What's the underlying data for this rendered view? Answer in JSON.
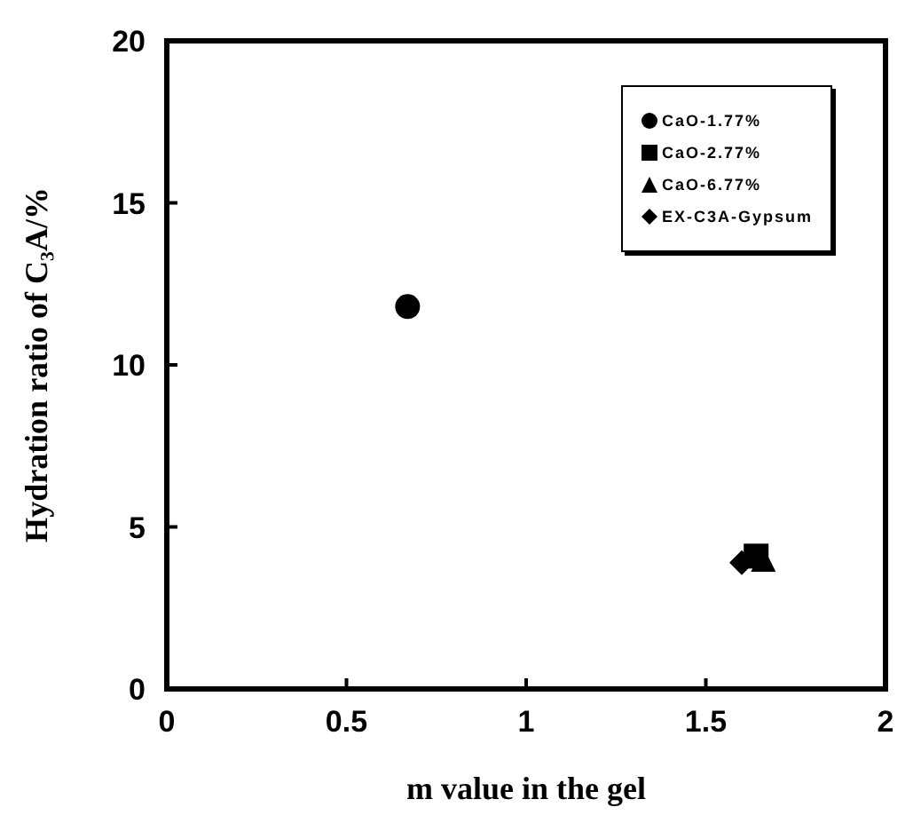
{
  "chart_data": {
    "type": "scatter",
    "xlabel": "m value in the gel",
    "ylabel": "Hydration ratio of C₃A/%",
    "xlim": [
      0,
      2
    ],
    "xticks": [
      0,
      0.5,
      1,
      1.5,
      2
    ],
    "ylim": [
      0,
      20
    ],
    "yticks": [
      0,
      5,
      10,
      15,
      20
    ],
    "grid": false,
    "legend": "top right",
    "series": [
      {
        "name": "CaO-1.77%",
        "color": "#000000",
        "marker": "circle",
        "x": [
          0.67
        ],
        "values": [
          11.8
        ]
      },
      {
        "name": "CaO-2.77%",
        "color": "#000000",
        "marker": "square",
        "x": [
          1.64
        ],
        "values": [
          4.1
        ]
      },
      {
        "name": "CaO-6.77%",
        "color": "#000000",
        "marker": "triangle",
        "x": [
          1.66
        ],
        "values": [
          4.0
        ]
      },
      {
        "name": "EX-C3A-Gypsum",
        "color": "#000000",
        "marker": "diamond",
        "x": [
          1.6
        ],
        "values": [
          3.9
        ]
      }
    ]
  }
}
